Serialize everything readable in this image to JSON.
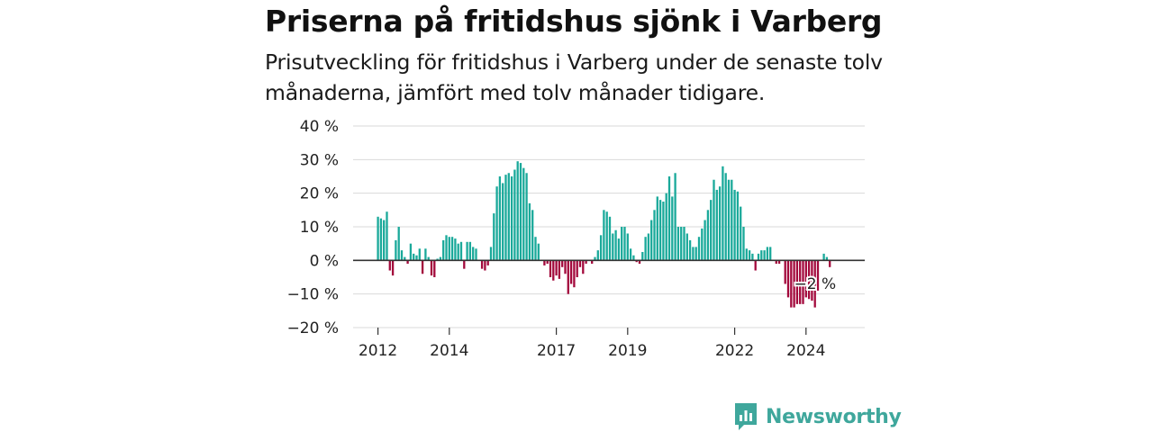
{
  "title": "Priserna på fritidshus sjönk i Varberg",
  "subtitle": "Prisutveckling för fritidshus i Varberg under de senaste tolv månaderna, jämfört med tolv månader tidigare.",
  "brand": {
    "name": "Newsworthy"
  },
  "colors": {
    "positive": "#1aa99a",
    "negative": "#a3093c",
    "grid": "#d9d9d9",
    "zero": "#333333",
    "brand": "#3fa79c"
  },
  "chart_data": {
    "type": "bar",
    "start_date": "2012-01",
    "y_unit": "%",
    "ylim": [
      -20,
      40
    ],
    "y_ticks": [
      40,
      30,
      20,
      10,
      0,
      -10,
      -20
    ],
    "y_tick_labels": [
      "40 %",
      "30 %",
      "20 %",
      "10 %",
      "0 %",
      "−10 %",
      "−20 %"
    ],
    "x_ticks": [
      {
        "label": "2012",
        "month_index": 0
      },
      {
        "label": "2014",
        "month_index": 24
      },
      {
        "label": "2017",
        "month_index": 60
      },
      {
        "label": "2019",
        "month_index": 84
      },
      {
        "label": "2022",
        "month_index": 120
      },
      {
        "label": "2024",
        "month_index": 144
      }
    ],
    "grid": true,
    "last_label": "−2 %",
    "values": [
      13,
      12.5,
      12,
      14.5,
      -3,
      -4.5,
      6,
      10,
      3,
      1,
      -1,
      5,
      2,
      1.5,
      3.5,
      -4,
      3.5,
      1,
      -4.5,
      -5,
      0.5,
      1,
      6,
      7.5,
      7,
      7,
      6.5,
      5,
      5.5,
      -2.5,
      5.5,
      5.5,
      4,
      3.5,
      0,
      -2.5,
      -3,
      -1.5,
      4,
      14,
      22,
      25,
      23,
      25.5,
      26,
      25,
      27,
      29.5,
      29,
      27.5,
      26,
      17,
      15,
      7,
      5,
      0,
      -1.5,
      -1,
      -5,
      -6,
      -4.5,
      -5.5,
      -2,
      -4,
      -10,
      -7,
      -8,
      -5,
      -2,
      -4,
      -1,
      0,
      -1,
      1,
      3,
      7.5,
      15,
      14.5,
      13,
      8,
      9,
      6.5,
      10,
      10,
      8,
      3.5,
      1.5,
      -0.5,
      -1,
      2.5,
      7,
      8,
      12,
      15,
      19,
      18,
      17.5,
      20,
      25,
      19,
      26,
      10,
      10,
      10,
      8,
      6,
      4,
      4,
      7,
      9.5,
      12,
      15,
      18,
      24,
      21,
      22,
      28,
      26,
      24,
      24,
      21,
      20.5,
      16,
      10,
      3.5,
      3,
      2,
      -3,
      2,
      3,
      3,
      4,
      4,
      0,
      -1,
      -1,
      0,
      -7,
      -11,
      -14,
      -14,
      -13,
      -13,
      -13,
      -11,
      -11.5,
      -12,
      -14,
      -9,
      0,
      2,
      1,
      -2
    ]
  }
}
